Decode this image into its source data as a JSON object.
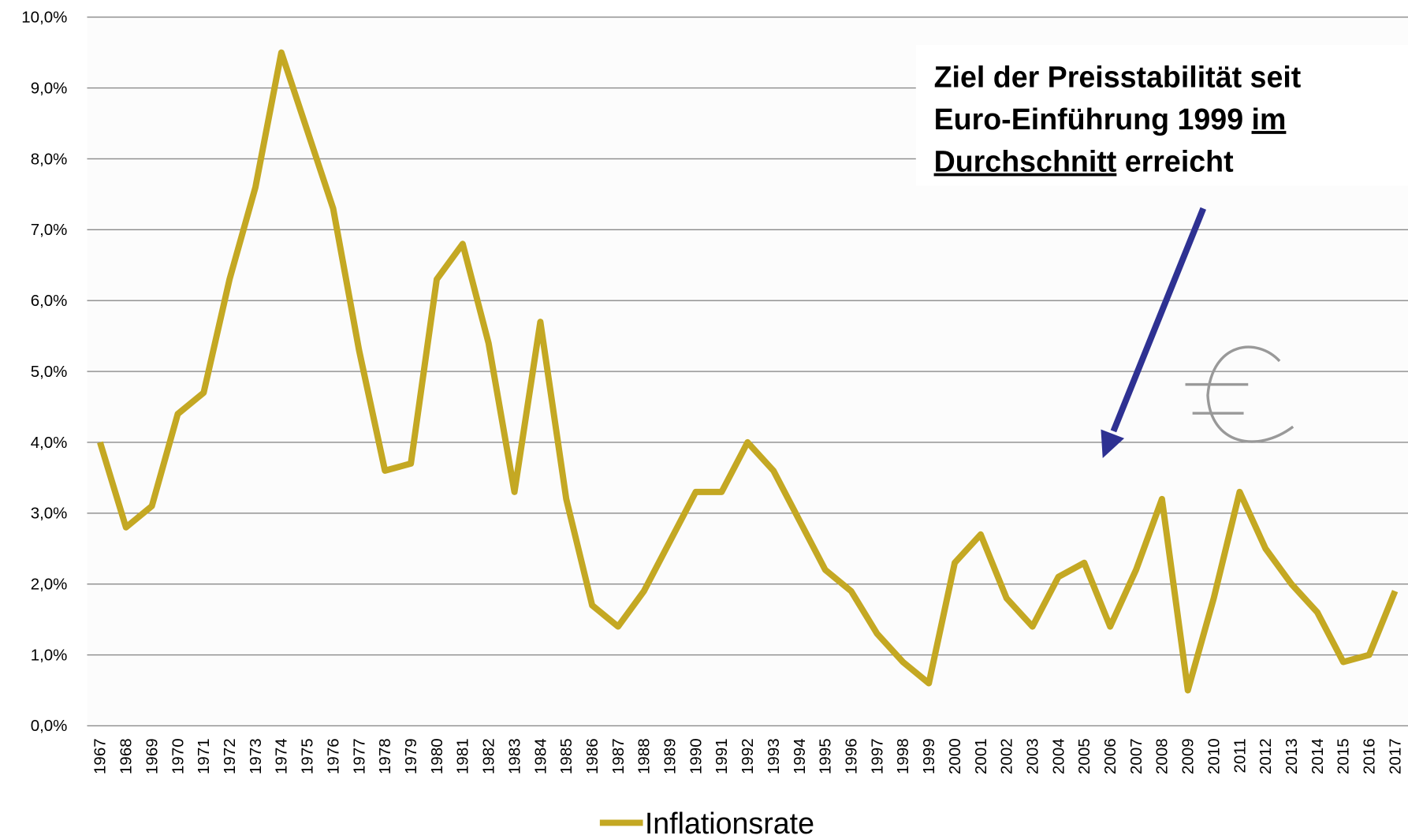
{
  "chart_data": {
    "type": "line",
    "categories": [
      "1967",
      "1968",
      "1969",
      "1970",
      "1971",
      "1972",
      "1973",
      "1974",
      "1975",
      "1976",
      "1977",
      "1978",
      "1979",
      "1980",
      "1981",
      "1982",
      "1983",
      "1984",
      "1985",
      "1986",
      "1987",
      "1988",
      "1989",
      "1990",
      "1991",
      "1992",
      "1993",
      "1994",
      "1995",
      "1996",
      "1997",
      "1998",
      "1999",
      "2000",
      "2001",
      "2002",
      "2003",
      "2004",
      "2005",
      "2006",
      "2007",
      "2008",
      "2009",
      "2010",
      "2011",
      "2012",
      "2013",
      "2014",
      "2015",
      "2016",
      "2017"
    ],
    "series": [
      {
        "name": "Inflationsrate",
        "color": "#c4a823",
        "values": [
          4.0,
          2.8,
          3.1,
          4.4,
          4.7,
          6.3,
          7.6,
          9.5,
          8.4,
          7.3,
          5.3,
          3.6,
          3.7,
          6.3,
          6.8,
          5.4,
          3.3,
          5.7,
          3.2,
          1.7,
          1.4,
          1.9,
          2.6,
          3.3,
          3.3,
          4.0,
          3.6,
          2.9,
          2.2,
          1.9,
          1.3,
          0.9,
          0.6,
          2.3,
          2.7,
          1.8,
          1.4,
          2.1,
          2.3,
          1.4,
          2.2,
          3.2,
          0.5,
          1.8,
          3.3,
          2.5,
          2.0,
          1.6,
          0.9,
          1.0,
          1.9
        ]
      }
    ],
    "ylim": [
      0,
      10
    ],
    "yticks": [
      {
        "value": 0,
        "label": "0,0%"
      },
      {
        "value": 1,
        "label": "1,0%"
      },
      {
        "value": 2,
        "label": "2,0%"
      },
      {
        "value": 3,
        "label": "3,0%"
      },
      {
        "value": 4,
        "label": "4,0%"
      },
      {
        "value": 5,
        "label": "5,0%"
      },
      {
        "value": 6,
        "label": "6,0%"
      },
      {
        "value": 7,
        "label": "7,0%"
      },
      {
        "value": 8,
        "label": "8,0%"
      },
      {
        "value": 9,
        "label": "9,0%"
      },
      {
        "value": 10,
        "label": "10,0%"
      }
    ],
    "grid": true,
    "legend": "bottom",
    "annotation": [
      [
        {
          "text": "Ziel der Preisstabilität seit",
          "underline": false
        }
      ],
      [
        {
          "text": "Euro-Einführung 1999 ",
          "underline": false
        },
        {
          "text": "im",
          "underline": true
        }
      ],
      [
        {
          "text": "Durchschnitt",
          "underline": true
        },
        {
          "text": " erreicht",
          "underline": false
        }
      ]
    ]
  }
}
